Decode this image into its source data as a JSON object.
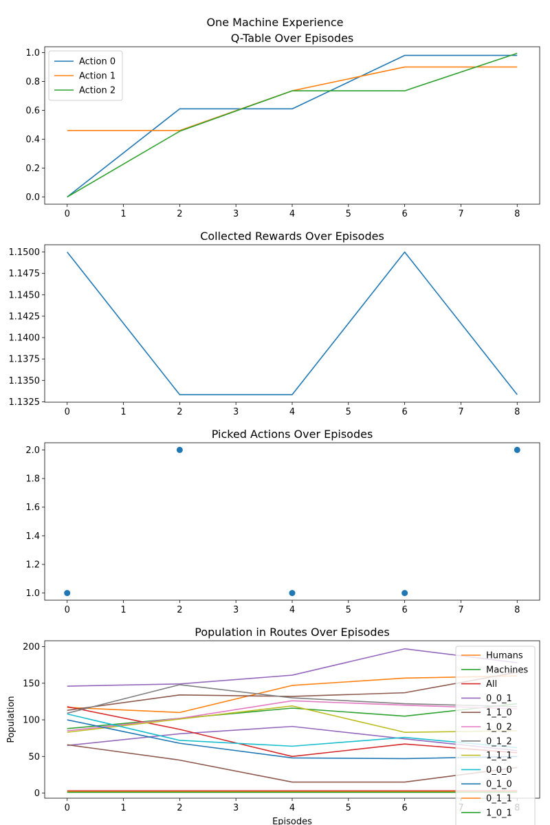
{
  "figure": {
    "suptitle": "One Machine Experience"
  },
  "colors": {
    "blue": "#1f77b4",
    "orange": "#ff7f0e",
    "green": "#2ca02c",
    "red": "#d62728",
    "purple": "#9467bd",
    "brown": "#8c564b",
    "pink": "#e377c2",
    "gray": "#7f7f7f",
    "olive": "#bcbd22",
    "cyan": "#17becf"
  },
  "chart_data": [
    {
      "type": "line",
      "title": "Q-Table Over Episodes",
      "xlabel": "",
      "ylabel": "",
      "xlim": [
        -0.4,
        8.4
      ],
      "ylim": [
        -0.05,
        1.04
      ],
      "xticks": [
        "0",
        "1",
        "2",
        "3",
        "4",
        "5",
        "6",
        "7",
        "8"
      ],
      "yticks": [
        "0.0",
        "0.2",
        "0.4",
        "0.6",
        "0.8",
        "1.0"
      ],
      "legend": "upper-left",
      "x": [
        0,
        2,
        4,
        6,
        8
      ],
      "series": [
        {
          "name": "Action 0",
          "color": "#1f77b4",
          "values": [
            0.0,
            0.61,
            0.61,
            0.98,
            0.98
          ]
        },
        {
          "name": "Action 1",
          "color": "#ff7f0e",
          "values": [
            0.46,
            0.46,
            0.735,
            0.9,
            0.9
          ]
        },
        {
          "name": "Action 2",
          "color": "#2ca02c",
          "values": [
            0.0,
            0.455,
            0.735,
            0.735,
            0.995
          ]
        }
      ]
    },
    {
      "type": "line",
      "title": "Collected Rewards Over Episodes",
      "xlabel": "",
      "ylabel": "",
      "xlim": [
        -0.4,
        8.4
      ],
      "ylim": [
        1.13245,
        1.15085
      ],
      "xticks": [
        "0",
        "1",
        "2",
        "3",
        "4",
        "5",
        "6",
        "7",
        "8"
      ],
      "yticks": [
        "1.1325",
        "1.1350",
        "1.1375",
        "1.1400",
        "1.1425",
        "1.1450",
        "1.1475",
        "1.1500"
      ],
      "x": [
        0,
        2,
        4,
        6,
        8
      ],
      "series": [
        {
          "color": "#1f77b4",
          "values": [
            1.15,
            1.13333,
            1.13333,
            1.15,
            1.13333
          ]
        }
      ]
    },
    {
      "type": "scatter",
      "title": "Picked Actions Over Episodes",
      "xlabel": "",
      "ylabel": "",
      "xlim": [
        -0.4,
        8.4
      ],
      "ylim": [
        0.95,
        2.05
      ],
      "xticks": [
        "0",
        "1",
        "2",
        "3",
        "4",
        "5",
        "6",
        "7",
        "8"
      ],
      "yticks": [
        "1.0",
        "1.2",
        "1.4",
        "1.6",
        "1.8",
        "2.0"
      ],
      "x": [
        0,
        2,
        4,
        6,
        8
      ],
      "series": [
        {
          "color": "#1f77b4",
          "values": [
            1,
            2,
            1,
            1,
            2
          ]
        }
      ]
    },
    {
      "type": "line",
      "title": "Population in Routes Over Episodes",
      "xlabel": "Episodes",
      "ylabel": "Population",
      "xlim": [
        -0.4,
        8.4
      ],
      "ylim": [
        -7,
        208
      ],
      "xticks": [
        "0",
        "1",
        "2",
        "3",
        "4",
        "5",
        "6",
        "7",
        "8"
      ],
      "yticks": [
        "0",
        "50",
        "100",
        "150",
        "200"
      ],
      "legend": "right",
      "x": [
        0,
        2,
        4,
        6,
        8
      ],
      "series": [
        {
          "name": "Humans",
          "color": "#ff7f0e",
          "values": [
            117,
            110,
            147,
            157,
            160
          ]
        },
        {
          "name": "Machines",
          "color": "#2ca02c",
          "values": [
            88,
            102,
            116,
            105,
            122
          ]
        },
        {
          "name": "All",
          "color": "#d62728",
          "values": [
            118,
            87,
            50,
            67,
            55
          ]
        },
        {
          "name": "0_0_1",
          "color": "#9467bd",
          "values": [
            146,
            149,
            161,
            197,
            178
          ]
        },
        {
          "name": "1_1_0",
          "color": "#8c564b",
          "values": [
            113,
            134,
            132,
            137,
            165
          ]
        },
        {
          "name": "1_0_2",
          "color": "#e377c2",
          "values": [
            85,
            102,
            126,
            120,
            115
          ]
        },
        {
          "name": "0_1_2",
          "color": "#7f7f7f",
          "values": [
            109,
            148,
            130,
            122,
            118
          ]
        },
        {
          "name": "1_1_1",
          "color": "#bcbd22",
          "values": [
            83,
            101,
            119,
            83,
            85
          ]
        },
        {
          "name": "0_0_0",
          "color": "#17becf",
          "values": [
            108,
            72,
            64,
            76,
            62
          ]
        },
        {
          "name": "0_1_0",
          "color": "#1f77b4",
          "values": [
            100,
            68,
            48,
            47,
            50
          ]
        },
        {
          "name": "0_1_1",
          "color": "#ff7f0e",
          "values": [
            2,
            2,
            2,
            2,
            2
          ]
        },
        {
          "name": "1_0_1",
          "color": "#2ca02c",
          "values": [
            1,
            1,
            1,
            1,
            1
          ]
        }
      ],
      "extra_unlabeled": [
        {
          "color": "#9467bd",
          "values": [
            65,
            81,
            91,
            74,
            58
          ]
        },
        {
          "color": "#8c564b",
          "values": [
            66,
            45,
            15,
            15,
            35
          ]
        },
        {
          "color": "#d62728",
          "values": [
            3,
            3,
            3,
            3,
            3
          ]
        }
      ]
    }
  ]
}
